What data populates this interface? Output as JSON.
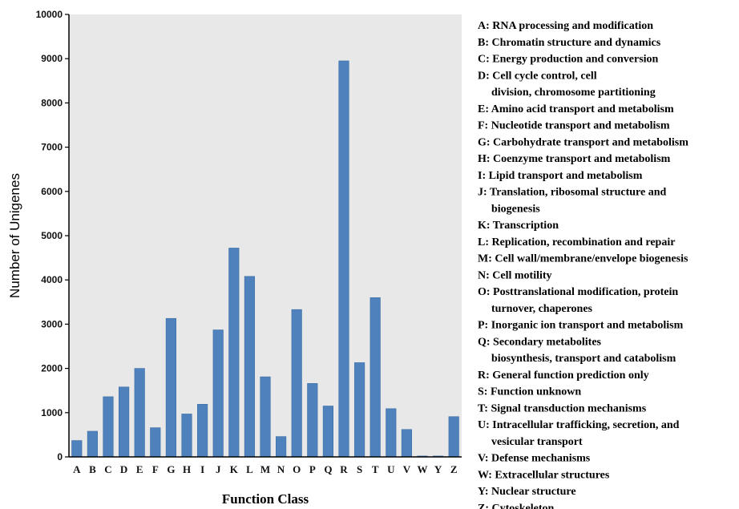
{
  "chart_data": {
    "type": "bar",
    "xlabel": "Function Class",
    "ylabel": "Number of Unigenes",
    "ylim": [
      0,
      10000
    ],
    "yticks": [
      0,
      1000,
      2000,
      3000,
      4000,
      5000,
      6000,
      7000,
      8000,
      9000,
      10000
    ],
    "grid": false,
    "plot_background": "#e8e8e8",
    "bar_color": "#4f81bd",
    "legend_position": "right",
    "categories": [
      "A",
      "B",
      "C",
      "D",
      "E",
      "F",
      "G",
      "H",
      "I",
      "J",
      "K",
      "L",
      "M",
      "N",
      "O",
      "P",
      "Q",
      "R",
      "S",
      "T",
      "U",
      "V",
      "W",
      "Y",
      "Z"
    ],
    "values": [
      370,
      580,
      1360,
      1580,
      2000,
      660,
      3130,
      970,
      1190,
      2870,
      4720,
      4080,
      1810,
      460,
      3330,
      1660,
      1150,
      8950,
      2130,
      3600,
      1090,
      620,
      20,
      20,
      910
    ],
    "legend_entries": [
      [
        "A: RNA processing and modification"
      ],
      [
        "B: Chromatin structure and dynamics"
      ],
      [
        "C: Energy production and conversion"
      ],
      [
        "D: Cell cycle control, cell",
        "division, chromosome partitioning"
      ],
      [
        "E: Amino acid transport and metabolism"
      ],
      [
        "F: Nucleotide transport and metabolism"
      ],
      [
        "G: Carbohydrate transport and metabolism"
      ],
      [
        "H: Coenzyme transport and metabolism"
      ],
      [
        "I: Lipid transport and metabolism"
      ],
      [
        "J: Translation, ribosomal structure and",
        "biogenesis"
      ],
      [
        "K: Transcription"
      ],
      [
        "L: Replication, recombination and repair"
      ],
      [
        "M: Cell wall/membrane/envelope biogenesis"
      ],
      [
        "N: Cell motility"
      ],
      [
        "O: Posttranslational modification, protein",
        "turnover, chaperones"
      ],
      [
        "P: Inorganic ion transport and metabolism"
      ],
      [
        "Q: Secondary metabolites",
        "biosynthesis, transport and catabolism"
      ],
      [
        "R: General function prediction only"
      ],
      [
        "S: Function unknown"
      ],
      [
        "T: Signal transduction mechanisms"
      ],
      [
        "U: Intracellular trafficking, secretion, and",
        "vesicular transport"
      ],
      [
        "V: Defense mechanisms"
      ],
      [
        "W: Extracellular structures"
      ],
      [
        "Y: Nuclear structure"
      ],
      [
        "Z: Cytoskeleton"
      ]
    ]
  }
}
